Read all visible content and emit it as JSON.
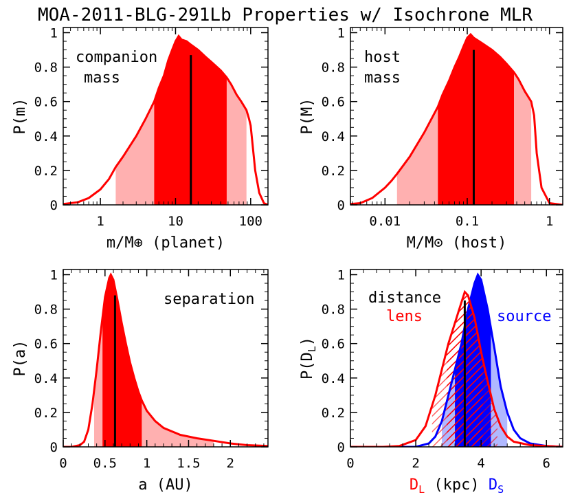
{
  "title": "MOA-2011-BLG-291Lb Properties w/ Isochrone MLR",
  "colors": {
    "red": "#ff0000",
    "pink": "#ffb0b0",
    "blue": "#0000ff",
    "light_blue": "#b0b8ff",
    "axis": "#000000",
    "median_line": "#000000"
  },
  "chart_data": [
    {
      "id": "companion-mass",
      "type": "area",
      "annotations": [
        "companion",
        "mass"
      ],
      "xlabel": "m/M⊕ (planet)",
      "ylabel": "P(m)",
      "x_scale": "log",
      "xlim": [
        0.32,
        170
      ],
      "ylim": [
        0,
        1.03
      ],
      "xticks": [
        1,
        10,
        100
      ],
      "xtick_labels": [
        "1",
        "10",
        "100"
      ],
      "yticks": [
        0,
        0.2,
        0.4,
        0.6,
        0.8,
        1
      ],
      "ytick_labels": [
        "0",
        "0.2",
        "0.4",
        "0.6",
        "0.8",
        "1"
      ],
      "median": 16,
      "median_height": 0.87,
      "range_1sigma": [
        5.2,
        48
      ],
      "range_2sigma": [
        1.6,
        88
      ],
      "curve": [
        [
          0.32,
          0.005
        ],
        [
          0.5,
          0.015
        ],
        [
          0.7,
          0.04
        ],
        [
          1,
          0.09
        ],
        [
          1.3,
          0.15
        ],
        [
          1.6,
          0.22
        ],
        [
          2,
          0.28
        ],
        [
          3,
          0.4
        ],
        [
          4,
          0.5
        ],
        [
          5.2,
          0.6
        ],
        [
          6,
          0.68
        ],
        [
          7,
          0.75
        ],
        [
          8,
          0.84
        ],
        [
          9,
          0.9
        ],
        [
          10,
          0.95
        ],
        [
          11,
          0.98
        ],
        [
          12,
          0.96
        ],
        [
          14,
          0.95
        ],
        [
          16,
          0.93
        ],
        [
          20,
          0.9
        ],
        [
          25,
          0.86
        ],
        [
          30,
          0.83
        ],
        [
          40,
          0.78
        ],
        [
          48,
          0.74
        ],
        [
          55,
          0.7
        ],
        [
          65,
          0.64
        ],
        [
          75,
          0.6
        ],
        [
          88,
          0.55
        ],
        [
          95,
          0.5
        ],
        [
          100,
          0.46
        ],
        [
          115,
          0.2
        ],
        [
          130,
          0.07
        ],
        [
          150,
          0.01
        ],
        [
          170,
          0.0
        ]
      ]
    },
    {
      "id": "host-mass",
      "type": "area",
      "annotations": [
        "host",
        "mass"
      ],
      "xlabel": "M/M⊙ (host)",
      "ylabel": "P(M)",
      "x_scale": "log",
      "xlim": [
        0.0038,
        1.45
      ],
      "ylim": [
        0,
        1.03
      ],
      "xticks": [
        0.01,
        0.1,
        1
      ],
      "xtick_labels": [
        "0.01",
        "0.1",
        "1"
      ],
      "yticks": [
        0,
        0.2,
        0.4,
        0.6,
        0.8,
        1
      ],
      "ytick_labels": [
        "0",
        "0.2",
        "0.4",
        "0.6",
        "0.8",
        "1"
      ],
      "median": 0.12,
      "median_height": 0.9,
      "range_1sigma": [
        0.044,
        0.37
      ],
      "range_2sigma": [
        0.014,
        0.6
      ],
      "curve": [
        [
          0.0038,
          0.005
        ],
        [
          0.005,
          0.01
        ],
        [
          0.007,
          0.04
        ],
        [
          0.01,
          0.1
        ],
        [
          0.012,
          0.14
        ],
        [
          0.014,
          0.18
        ],
        [
          0.02,
          0.28
        ],
        [
          0.03,
          0.42
        ],
        [
          0.044,
          0.57
        ],
        [
          0.05,
          0.64
        ],
        [
          0.06,
          0.72
        ],
        [
          0.07,
          0.8
        ],
        [
          0.08,
          0.86
        ],
        [
          0.09,
          0.92
        ],
        [
          0.1,
          0.97
        ],
        [
          0.11,
          0.99
        ],
        [
          0.12,
          0.97
        ],
        [
          0.15,
          0.94
        ],
        [
          0.2,
          0.9
        ],
        [
          0.25,
          0.86
        ],
        [
          0.3,
          0.82
        ],
        [
          0.37,
          0.77
        ],
        [
          0.42,
          0.73
        ],
        [
          0.5,
          0.66
        ],
        [
          0.6,
          0.6
        ],
        [
          0.65,
          0.52
        ],
        [
          0.7,
          0.3
        ],
        [
          0.8,
          0.1
        ],
        [
          1,
          0.01
        ],
        [
          1.45,
          0.0
        ]
      ]
    },
    {
      "id": "separation",
      "type": "area",
      "annotations": [
        "separation"
      ],
      "xlabel": "a (AU)",
      "ylabel": "P(a)",
      "x_scale": "linear",
      "xlim": [
        0,
        2.45
      ],
      "ylim": [
        0,
        1.03
      ],
      "xticks": [
        0,
        0.5,
        1,
        1.5,
        2
      ],
      "xtick_labels": [
        "0",
        "0.5",
        "1",
        "1.5",
        "2"
      ],
      "yticks": [
        0,
        0.2,
        0.4,
        0.6,
        0.8,
        1
      ],
      "ytick_labels": [
        "0",
        "0.2",
        "0.4",
        "0.6",
        "0.8",
        "1"
      ],
      "median": 0.62,
      "median_height": 0.88,
      "range_1sigma": [
        0.47,
        0.94
      ],
      "range_2sigma": [
        0.37,
        1.8
      ],
      "curve": [
        [
          0,
          0
        ],
        [
          0.1,
          0.0
        ],
        [
          0.2,
          0.01
        ],
        [
          0.25,
          0.03
        ],
        [
          0.3,
          0.1
        ],
        [
          0.35,
          0.25
        ],
        [
          0.4,
          0.45
        ],
        [
          0.45,
          0.67
        ],
        [
          0.5,
          0.87
        ],
        [
          0.55,
          0.98
        ],
        [
          0.57,
          1.0
        ],
        [
          0.6,
          0.97
        ],
        [
          0.65,
          0.85
        ],
        [
          0.7,
          0.72
        ],
        [
          0.75,
          0.6
        ],
        [
          0.8,
          0.49
        ],
        [
          0.85,
          0.4
        ],
        [
          0.9,
          0.32
        ],
        [
          0.94,
          0.27
        ],
        [
          1,
          0.21
        ],
        [
          1.1,
          0.15
        ],
        [
          1.2,
          0.11
        ],
        [
          1.4,
          0.07
        ],
        [
          1.6,
          0.05
        ],
        [
          1.8,
          0.035
        ],
        [
          2,
          0.02
        ],
        [
          2.2,
          0.01
        ],
        [
          2.45,
          0.005
        ]
      ]
    },
    {
      "id": "distance",
      "type": "area",
      "annotations": [
        "distance"
      ],
      "xlabel": "DL (kpc) DS",
      "ylabel": "P(DL)",
      "x_scale": "linear",
      "xlim": [
        0,
        6.5
      ],
      "ylim": [
        0,
        1.03
      ],
      "xticks": [
        0,
        2,
        4,
        6
      ],
      "xtick_labels": [
        "0",
        "2",
        "4",
        "6"
      ],
      "yticks": [
        0,
        0.2,
        0.4,
        0.6,
        0.8,
        1
      ],
      "ytick_labels": [
        "0",
        "0.2",
        "0.4",
        "0.6",
        "0.8",
        "1"
      ],
      "median": 3.5,
      "median_height": 0.85,
      "series": [
        {
          "name": "lens",
          "color": "#ff0000",
          "range_1sigma": [
            2.95,
            4.05
          ],
          "range_2sigma": [
            2.5,
            4.5
          ],
          "curve": [
            [
              0,
              0
            ],
            [
              1,
              0.0
            ],
            [
              1.5,
              0.005
            ],
            [
              2,
              0.04
            ],
            [
              2.3,
              0.12
            ],
            [
              2.6,
              0.3
            ],
            [
              2.8,
              0.45
            ],
            [
              3,
              0.6
            ],
            [
              3.2,
              0.72
            ],
            [
              3.4,
              0.84
            ],
            [
              3.5,
              0.9
            ],
            [
              3.6,
              0.88
            ],
            [
              3.8,
              0.75
            ],
            [
              4,
              0.55
            ],
            [
              4.2,
              0.38
            ],
            [
              4.4,
              0.22
            ],
            [
              4.6,
              0.12
            ],
            [
              4.8,
              0.06
            ],
            [
              5,
              0.03
            ],
            [
              5.5,
              0.01
            ],
            [
              6.5,
              0.0
            ]
          ]
        },
        {
          "name": "source",
          "color": "#0000ff",
          "range_1sigma": [
            3.2,
            4.3
          ],
          "range_2sigma": [
            2.8,
            4.8
          ],
          "curve": [
            [
              0,
              0
            ],
            [
              2,
              0.0
            ],
            [
              2.4,
              0.02
            ],
            [
              2.6,
              0.06
            ],
            [
              2.8,
              0.15
            ],
            [
              3,
              0.3
            ],
            [
              3.2,
              0.45
            ],
            [
              3.4,
              0.6
            ],
            [
              3.6,
              0.8
            ],
            [
              3.8,
              0.95
            ],
            [
              3.9,
              1.0
            ],
            [
              4,
              0.97
            ],
            [
              4.2,
              0.8
            ],
            [
              4.4,
              0.58
            ],
            [
              4.6,
              0.35
            ],
            [
              4.8,
              0.2
            ],
            [
              5,
              0.1
            ],
            [
              5.2,
              0.05
            ],
            [
              5.5,
              0.02
            ],
            [
              6,
              0.005
            ],
            [
              6.5,
              0.0
            ]
          ]
        }
      ],
      "labels": {
        "lens": "lens",
        "source": "source",
        "x_dl": "D",
        "x_dl_sub": "L",
        "x_mid": " (kpc) ",
        "x_ds": "D",
        "x_ds_sub": "S"
      }
    }
  ]
}
